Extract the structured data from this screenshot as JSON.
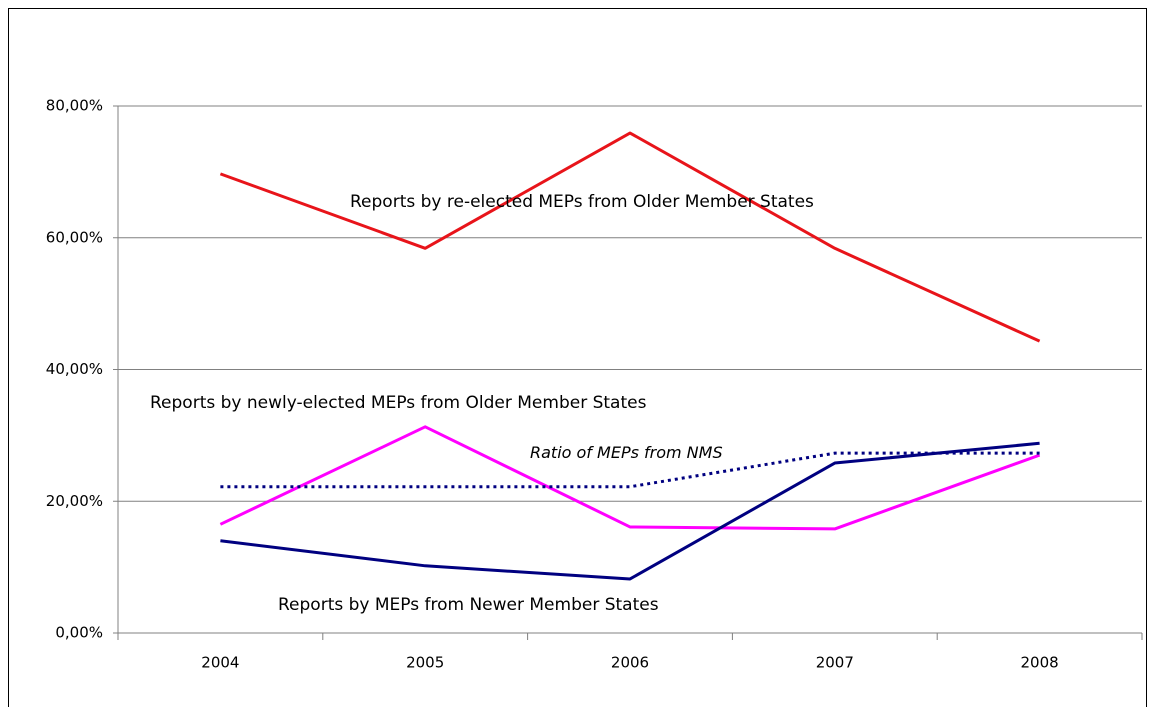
{
  "chart_data": {
    "type": "line",
    "categories": [
      "2004",
      "2005",
      "2006",
      "2007",
      "2008"
    ],
    "series": [
      {
        "name": "Reports by re-elected MEPs from Older Member States",
        "color": "#e8141a",
        "style": "solid",
        "values": [
          69.7,
          58.4,
          75.9,
          58.4,
          44.3
        ]
      },
      {
        "name": "Reports by newly-elected MEPs from Older Member States",
        "color": "#ff00ff",
        "style": "solid",
        "values": [
          16.5,
          31.3,
          16.1,
          15.8,
          27.0
        ]
      },
      {
        "name": "Reports by MEPs from Newer Member States",
        "color": "#000080",
        "style": "solid",
        "values": [
          14.0,
          10.2,
          8.2,
          25.8,
          28.8
        ]
      },
      {
        "name": "Ratio of MEPs from NMS",
        "color": "#000080",
        "style": "dotted",
        "values": [
          22.2,
          22.2,
          22.2,
          27.3,
          27.3
        ]
      }
    ],
    "ylim": [
      0,
      80
    ],
    "yticks": [
      {
        "value": 0,
        "label": "0,00%"
      },
      {
        "value": 20,
        "label": "20,00%"
      },
      {
        "value": 40,
        "label": "40,00%"
      },
      {
        "value": 60,
        "label": "60,00%"
      },
      {
        "value": 80,
        "label": "80,00%"
      }
    ],
    "grid": true
  }
}
